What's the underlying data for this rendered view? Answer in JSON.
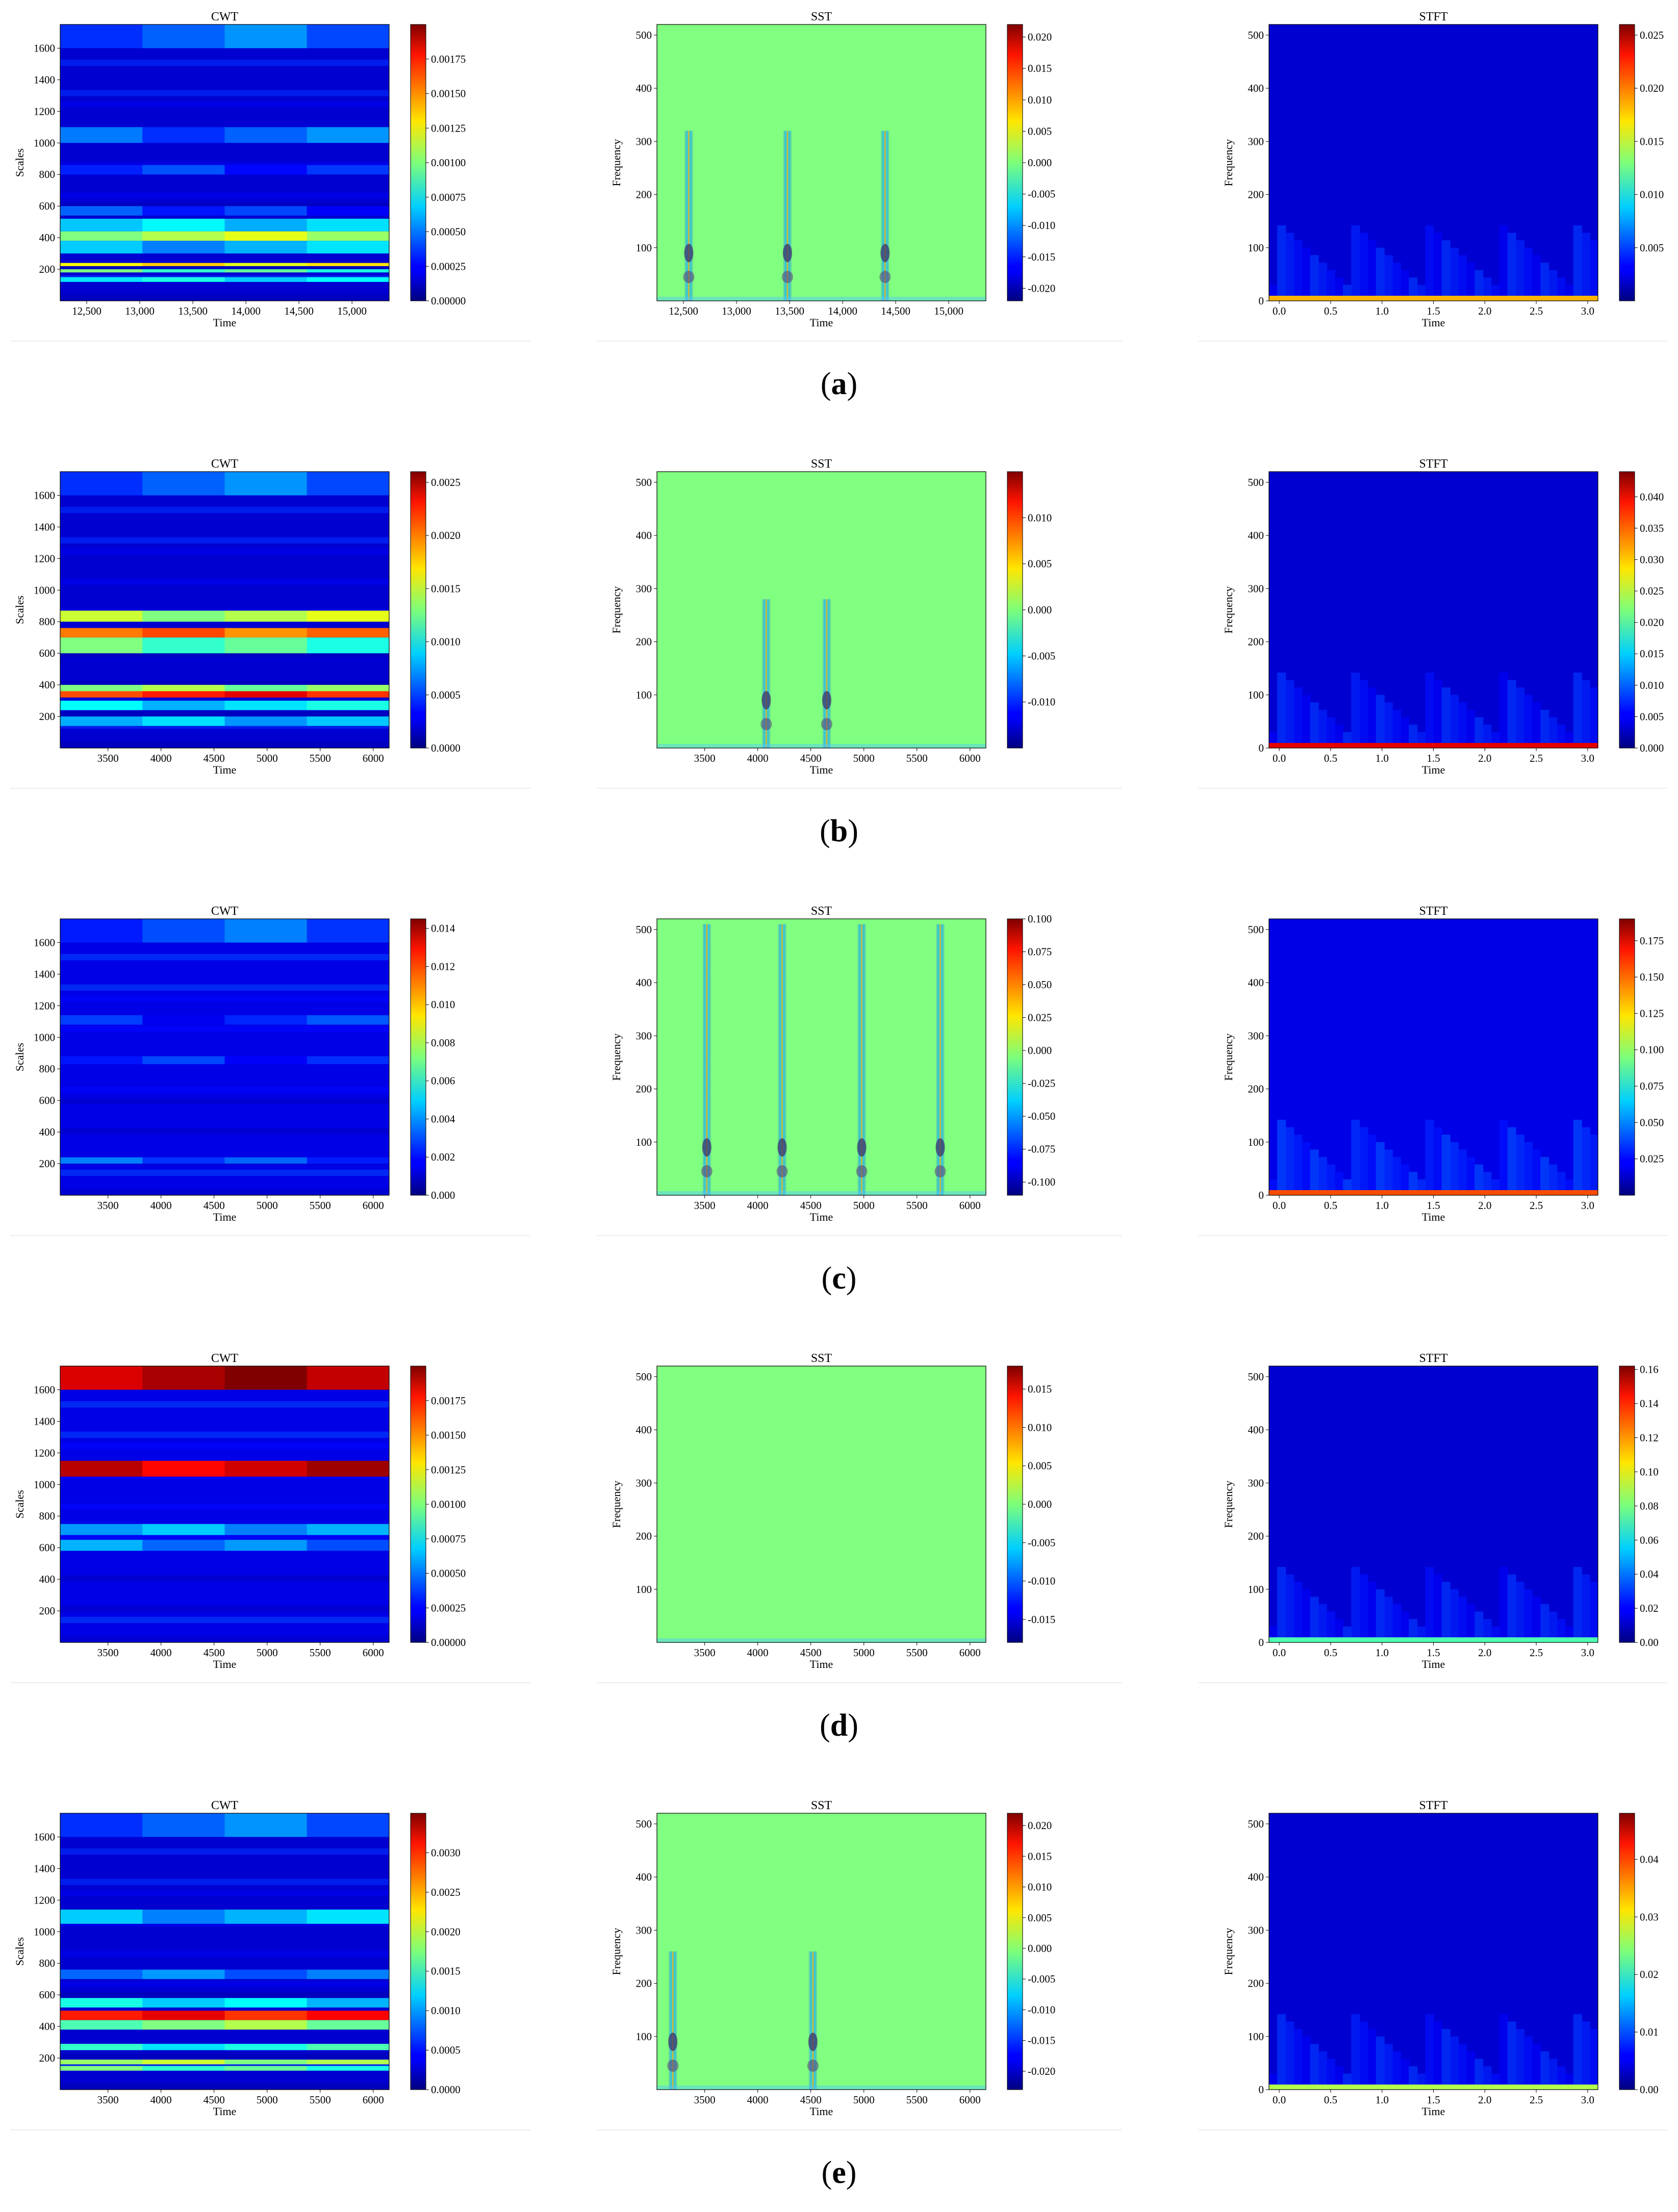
{
  "figure": {
    "panel_labels": [
      "a",
      "b",
      "c",
      "d",
      "e"
    ],
    "columns": [
      "CWT",
      "SST",
      "STFT"
    ]
  },
  "colors": {
    "colormap": "jet",
    "background": "#ffffff"
  },
  "chart_data": [
    {
      "row": "a",
      "type": "heatmap",
      "title": "CWT",
      "xlabel": "Time",
      "ylabel": "Scales",
      "xlim": [
        12250,
        15350
      ],
      "ylim": [
        0,
        1750
      ],
      "xticks": [
        {
          "v": 12500,
          "l": "12,500"
        },
        {
          "v": 13000,
          "l": "13,000"
        },
        {
          "v": 13500,
          "l": "13,500"
        },
        {
          "v": 14000,
          "l": "14,000"
        },
        {
          "v": 14500,
          "l": "14,500"
        },
        {
          "v": 15000,
          "l": "15,000"
        }
      ],
      "yticks": [
        200,
        400,
        600,
        800,
        1000,
        1200,
        1400,
        1600
      ],
      "colorbar": {
        "min": 0,
        "max": 0.002,
        "ticks": [
          "0.00000",
          "0.00025",
          "0.00050",
          "0.00075",
          "0.00100",
          "0.00125",
          "0.00150",
          "0.00175"
        ]
      },
      "bands": [
        {
          "y0": 1600,
          "y1": 1750,
          "v": 0.22
        },
        {
          "y0": 1000,
          "y1": 1100,
          "v": 0.22
        },
        {
          "y0": 800,
          "y1": 860,
          "v": 0.18
        },
        {
          "y0": 540,
          "y1": 600,
          "v": 0.17
        },
        {
          "y0": 440,
          "y1": 520,
          "v": 0.32
        },
        {
          "y0": 380,
          "y1": 440,
          "v": 0.55
        },
        {
          "y0": 300,
          "y1": 380,
          "v": 0.3
        },
        {
          "y0": 220,
          "y1": 240,
          "v": 0.65
        },
        {
          "y0": 180,
          "y1": 200,
          "v": 0.45
        },
        {
          "y0": 120,
          "y1": 150,
          "v": 0.35
        }
      ],
      "base": 0.08
    },
    {
      "row": "a",
      "type": "heatmap",
      "title": "SST",
      "xlabel": "Time",
      "ylabel": "Frequency",
      "xlim": [
        12250,
        15350
      ],
      "ylim": [
        0,
        520
      ],
      "xticks": [
        {
          "v": 12500,
          "l": "12,500"
        },
        {
          "v": 13000,
          "l": "13,000"
        },
        {
          "v": 13500,
          "l": "13,500"
        },
        {
          "v": 14000,
          "l": "14,000"
        },
        {
          "v": 14500,
          "l": "14,500"
        },
        {
          "v": 15000,
          "l": "15,000"
        }
      ],
      "yticks": [
        100,
        200,
        300,
        400,
        500
      ],
      "colorbar": {
        "min": -0.022,
        "max": 0.022,
        "ticks": [
          "-0.020",
          "-0.015",
          "-0.010",
          "-0.005",
          "0.000",
          "0.005",
          "0.010",
          "0.015",
          "0.020"
        ]
      },
      "streaks": [
        12550,
        13480,
        14400
      ],
      "streak_top": 320,
      "base": 0.5
    },
    {
      "row": "a",
      "type": "heatmap",
      "title": "STFT",
      "xlabel": "Time",
      "ylabel": "Frequency",
      "xlim": [
        -0.1,
        3.1
      ],
      "ylim": [
        0,
        520
      ],
      "xticks": [
        {
          "v": 0,
          "l": "0.0"
        },
        {
          "v": 0.5,
          "l": "0.5"
        },
        {
          "v": 1,
          "l": "1.0"
        },
        {
          "v": 1.5,
          "l": "1.5"
        },
        {
          "v": 2,
          "l": "2.0"
        },
        {
          "v": 2.5,
          "l": "2.5"
        },
        {
          "v": 3,
          "l": "3.0"
        }
      ],
      "yticks": [
        0,
        100,
        200,
        300,
        400,
        500
      ],
      "colorbar": {
        "min": 0,
        "max": 0.026,
        "ticks": [
          "0.005",
          "0.010",
          "0.015",
          "0.020",
          "0.025"
        ]
      },
      "bottom_strip": 0.7,
      "base": 0.08
    },
    {
      "row": "b",
      "type": "heatmap",
      "title": "CWT",
      "xlabel": "Time",
      "ylabel": "Scales",
      "xlim": [
        3050,
        6150
      ],
      "ylim": [
        0,
        1750
      ],
      "xticks": [
        {
          "v": 3500,
          "l": "3500"
        },
        {
          "v": 4000,
          "l": "4000"
        },
        {
          "v": 4500,
          "l": "4500"
        },
        {
          "v": 5000,
          "l": "5000"
        },
        {
          "v": 5500,
          "l": "5500"
        },
        {
          "v": 6000,
          "l": "6000"
        }
      ],
      "yticks": [
        200,
        400,
        600,
        800,
        1000,
        1200,
        1400,
        1600
      ],
      "colorbar": {
        "min": 0,
        "max": 0.0026,
        "ticks": [
          "0.0000",
          "0.0005",
          "0.0010",
          "0.0015",
          "0.0020",
          "0.0025"
        ]
      },
      "bands": [
        {
          "y0": 1600,
          "y1": 1750,
          "v": 0.22
        },
        {
          "y0": 800,
          "y1": 870,
          "v": 0.55
        },
        {
          "y0": 700,
          "y1": 760,
          "v": 0.78
        },
        {
          "y0": 600,
          "y1": 700,
          "v": 0.45
        },
        {
          "y0": 360,
          "y1": 400,
          "v": 0.5
        },
        {
          "y0": 320,
          "y1": 360,
          "v": 0.85
        },
        {
          "y0": 240,
          "y1": 300,
          "v": 0.35
        },
        {
          "y0": 140,
          "y1": 200,
          "v": 0.32
        }
      ],
      "base": 0.08
    },
    {
      "row": "b",
      "type": "heatmap",
      "title": "SST",
      "xlabel": "Time",
      "ylabel": "Frequency",
      "xlim": [
        3050,
        6150
      ],
      "ylim": [
        0,
        520
      ],
      "xticks": [
        {
          "v": 3500,
          "l": "3500"
        },
        {
          "v": 4000,
          "l": "4000"
        },
        {
          "v": 4500,
          "l": "4500"
        },
        {
          "v": 5000,
          "l": "5000"
        },
        {
          "v": 5500,
          "l": "5500"
        },
        {
          "v": 6000,
          "l": "6000"
        }
      ],
      "yticks": [
        100,
        200,
        300,
        400,
        500
      ],
      "colorbar": {
        "min": -0.015,
        "max": 0.015,
        "ticks": [
          "-0.010",
          "-0.005",
          "0.000",
          "0.005",
          "0.010"
        ]
      },
      "streaks": [
        4080,
        4650
      ],
      "streak_top": 280,
      "base": 0.5
    },
    {
      "row": "b",
      "type": "heatmap",
      "title": "STFT",
      "xlabel": "Time",
      "ylabel": "Frequency",
      "xlim": [
        -0.1,
        3.1
      ],
      "ylim": [
        0,
        520
      ],
      "xticks": [
        {
          "v": 0,
          "l": "0.0"
        },
        {
          "v": 0.5,
          "l": "0.5"
        },
        {
          "v": 1,
          "l": "1.0"
        },
        {
          "v": 1.5,
          "l": "1.5"
        },
        {
          "v": 2,
          "l": "2.0"
        },
        {
          "v": 2.5,
          "l": "2.5"
        },
        {
          "v": 3,
          "l": "3.0"
        }
      ],
      "yticks": [
        0,
        100,
        200,
        300,
        400,
        500
      ],
      "colorbar": {
        "min": 0,
        "max": 0.044,
        "ticks": [
          "0.000",
          "0.005",
          "0.010",
          "0.015",
          "0.020",
          "0.025",
          "0.030",
          "0.035",
          "0.040"
        ]
      },
      "bottom_strip": 0.9,
      "base": 0.08
    },
    {
      "row": "c",
      "type": "heatmap",
      "title": "CWT",
      "xlabel": "Time",
      "ylabel": "Scales",
      "xlim": [
        3050,
        6150
      ],
      "ylim": [
        0,
        1750
      ],
      "xticks": [
        {
          "v": 3500,
          "l": "3500"
        },
        {
          "v": 4000,
          "l": "4000"
        },
        {
          "v": 4500,
          "l": "4500"
        },
        {
          "v": 5000,
          "l": "5000"
        },
        {
          "v": 5500,
          "l": "5500"
        },
        {
          "v": 6000,
          "l": "6000"
        }
      ],
      "yticks": [
        200,
        400,
        600,
        800,
        1000,
        1200,
        1400,
        1600
      ],
      "colorbar": {
        "min": 0,
        "max": 0.0145,
        "ticks": [
          "0.000",
          "0.002",
          "0.004",
          "0.006",
          "0.008",
          "0.010",
          "0.012",
          "0.014"
        ]
      },
      "bands": [
        {
          "y0": 1600,
          "y1": 1750,
          "v": 0.2
        },
        {
          "y0": 1080,
          "y1": 1140,
          "v": 0.16
        },
        {
          "y0": 830,
          "y1": 880,
          "v": 0.17
        },
        {
          "y0": 200,
          "y1": 240,
          "v": 0.2
        }
      ],
      "base": 0.1
    },
    {
      "row": "c",
      "type": "heatmap",
      "title": "SST",
      "xlabel": "Time",
      "ylabel": "Frequency",
      "xlim": [
        3050,
        6150
      ],
      "ylim": [
        0,
        520
      ],
      "xticks": [
        {
          "v": 3500,
          "l": "3500"
        },
        {
          "v": 4000,
          "l": "4000"
        },
        {
          "v": 4500,
          "l": "4500"
        },
        {
          "v": 5000,
          "l": "5000"
        },
        {
          "v": 5500,
          "l": "5500"
        },
        {
          "v": 6000,
          "l": "6000"
        }
      ],
      "yticks": [
        100,
        200,
        300,
        400,
        500
      ],
      "colorbar": {
        "min": -0.11,
        "max": 0.1,
        "ticks": [
          "-0.100",
          "-0.075",
          "-0.050",
          "-0.025",
          "0.000",
          "0.025",
          "0.050",
          "0.075",
          "0.100"
        ]
      },
      "streaks": [
        3520,
        4230,
        4980,
        5720
      ],
      "streak_top": 510,
      "base": 0.5
    },
    {
      "row": "c",
      "type": "heatmap",
      "title": "STFT",
      "xlabel": "Time",
      "ylabel": "Frequency",
      "xlim": [
        -0.1,
        3.1
      ],
      "ylim": [
        0,
        520
      ],
      "xticks": [
        {
          "v": 0,
          "l": "0.0"
        },
        {
          "v": 0.5,
          "l": "0.5"
        },
        {
          "v": 1,
          "l": "1.0"
        },
        {
          "v": 1.5,
          "l": "1.5"
        },
        {
          "v": 2,
          "l": "2.0"
        },
        {
          "v": 2.5,
          "l": "2.5"
        },
        {
          "v": 3,
          "l": "3.0"
        }
      ],
      "yticks": [
        0,
        100,
        200,
        300,
        400,
        500
      ],
      "colorbar": {
        "min": 0,
        "max": 0.19,
        "ticks": [
          "0.025",
          "0.050",
          "0.075",
          "0.100",
          "0.125",
          "0.150",
          "0.175"
        ]
      },
      "bottom_strip": 0.8,
      "base": 0.1
    },
    {
      "row": "d",
      "type": "heatmap",
      "title": "CWT",
      "xlabel": "Time",
      "ylabel": "Scales",
      "xlim": [
        3050,
        6150
      ],
      "ylim": [
        0,
        1750
      ],
      "xticks": [
        {
          "v": 3500,
          "l": "3500"
        },
        {
          "v": 4000,
          "l": "4000"
        },
        {
          "v": 4500,
          "l": "4500"
        },
        {
          "v": 5000,
          "l": "5000"
        },
        {
          "v": 5500,
          "l": "5500"
        },
        {
          "v": 6000,
          "l": "6000"
        }
      ],
      "yticks": [
        200,
        400,
        600,
        800,
        1000,
        1200,
        1400,
        1600
      ],
      "colorbar": {
        "min": 0,
        "max": 0.002,
        "ticks": [
          "0.00000",
          "0.00025",
          "0.00050",
          "0.00075",
          "0.00100",
          "0.00125",
          "0.00150",
          "0.00175"
        ]
      },
      "bands": [
        {
          "y0": 1600,
          "y1": 1750,
          "v": 0.96
        },
        {
          "y0": 1050,
          "y1": 1150,
          "v": 0.92
        },
        {
          "y0": 680,
          "y1": 750,
          "v": 0.3
        },
        {
          "y0": 580,
          "y1": 650,
          "v": 0.25
        }
      ],
      "base": 0.1
    },
    {
      "row": "d",
      "type": "heatmap",
      "title": "SST",
      "xlabel": "Time",
      "ylabel": "Frequency",
      "xlim": [
        3050,
        6150
      ],
      "ylim": [
        0,
        520
      ],
      "xticks": [
        {
          "v": 3500,
          "l": "3500"
        },
        {
          "v": 4000,
          "l": "4000"
        },
        {
          "v": 4500,
          "l": "4500"
        },
        {
          "v": 5000,
          "l": "5000"
        },
        {
          "v": 5500,
          "l": "5500"
        },
        {
          "v": 6000,
          "l": "6000"
        }
      ],
      "yticks": [
        100,
        200,
        300,
        400,
        500
      ],
      "colorbar": {
        "min": -0.018,
        "max": 0.018,
        "ticks": [
          "-0.015",
          "-0.010",
          "-0.005",
          "0.000",
          "0.005",
          "0.010",
          "0.015"
        ]
      },
      "streaks": [],
      "streak_top": 0,
      "base": 0.5
    },
    {
      "row": "d",
      "type": "heatmap",
      "title": "STFT",
      "xlabel": "Time",
      "ylabel": "Frequency",
      "xlim": [
        -0.1,
        3.1
      ],
      "ylim": [
        0,
        520
      ],
      "xticks": [
        {
          "v": 0,
          "l": "0.0"
        },
        {
          "v": 0.5,
          "l": "0.5"
        },
        {
          "v": 1,
          "l": "1.0"
        },
        {
          "v": 1.5,
          "l": "1.5"
        },
        {
          "v": 2,
          "l": "2.0"
        },
        {
          "v": 2.5,
          "l": "2.5"
        },
        {
          "v": 3,
          "l": "3.0"
        }
      ],
      "yticks": [
        0,
        100,
        200,
        300,
        400,
        500
      ],
      "colorbar": {
        "min": 0,
        "max": 0.162,
        "ticks": [
          "0.00",
          "0.02",
          "0.04",
          "0.06",
          "0.08",
          "0.10",
          "0.12",
          "0.14",
          "0.16"
        ]
      },
      "bottom_strip": 0.45,
      "base": 0.08
    },
    {
      "row": "e",
      "type": "heatmap",
      "title": "CWT",
      "xlabel": "Time",
      "ylabel": "Scales",
      "xlim": [
        3050,
        6150
      ],
      "ylim": [
        0,
        1750
      ],
      "xticks": [
        {
          "v": 3500,
          "l": "3500"
        },
        {
          "v": 4000,
          "l": "4000"
        },
        {
          "v": 4500,
          "l": "4500"
        },
        {
          "v": 5000,
          "l": "5000"
        },
        {
          "v": 5500,
          "l": "5500"
        },
        {
          "v": 6000,
          "l": "6000"
        }
      ],
      "yticks": [
        200,
        400,
        600,
        800,
        1000,
        1200,
        1400,
        1600
      ],
      "colorbar": {
        "min": 0,
        "max": 0.0035,
        "ticks": [
          "0.0000",
          "0.0005",
          "0.0010",
          "0.0015",
          "0.0020",
          "0.0025",
          "0.0030"
        ]
      },
      "bands": [
        {
          "y0": 1600,
          "y1": 1750,
          "v": 0.22
        },
        {
          "y0": 1050,
          "y1": 1140,
          "v": 0.3
        },
        {
          "y0": 700,
          "y1": 760,
          "v": 0.25
        },
        {
          "y0": 520,
          "y1": 580,
          "v": 0.35
        },
        {
          "y0": 440,
          "y1": 500,
          "v": 0.85
        },
        {
          "y0": 380,
          "y1": 440,
          "v": 0.5
        },
        {
          "y0": 250,
          "y1": 290,
          "v": 0.4
        },
        {
          "y0": 160,
          "y1": 190,
          "v": 0.55
        },
        {
          "y0": 120,
          "y1": 150,
          "v": 0.45
        }
      ],
      "base": 0.08
    },
    {
      "row": "e",
      "type": "heatmap",
      "title": "SST",
      "xlabel": "Time",
      "ylabel": "Frequency",
      "xlim": [
        3050,
        6150
      ],
      "ylim": [
        0,
        520
      ],
      "xticks": [
        {
          "v": 3500,
          "l": "3500"
        },
        {
          "v": 4000,
          "l": "4000"
        },
        {
          "v": 4500,
          "l": "4500"
        },
        {
          "v": 5000,
          "l": "5000"
        },
        {
          "v": 5500,
          "l": "5500"
        },
        {
          "v": 6000,
          "l": "6000"
        }
      ],
      "yticks": [
        100,
        200,
        300,
        400,
        500
      ],
      "colorbar": {
        "min": -0.023,
        "max": 0.022,
        "ticks": [
          "-0.020",
          "-0.015",
          "-0.010",
          "-0.005",
          "0.000",
          "0.005",
          "0.010",
          "0.015",
          "0.020"
        ]
      },
      "streaks": [
        3200,
        4520
      ],
      "streak_top": 260,
      "base": 0.5
    },
    {
      "row": "e",
      "type": "heatmap",
      "title": "STFT",
      "xlabel": "Time",
      "ylabel": "Frequency",
      "xlim": [
        -0.1,
        3.1
      ],
      "ylim": [
        0,
        520
      ],
      "xticks": [
        {
          "v": 0,
          "l": "0.0"
        },
        {
          "v": 0.5,
          "l": "0.5"
        },
        {
          "v": 1,
          "l": "1.0"
        },
        {
          "v": 1.5,
          "l": "1.5"
        },
        {
          "v": 2,
          "l": "2.0"
        },
        {
          "v": 2.5,
          "l": "2.5"
        },
        {
          "v": 3,
          "l": "3.0"
        }
      ],
      "yticks": [
        0,
        100,
        200,
        300,
        400,
        500
      ],
      "colorbar": {
        "min": 0,
        "max": 0.048,
        "ticks": [
          "0.00",
          "0.01",
          "0.02",
          "0.03",
          "0.04"
        ]
      },
      "bottom_strip": 0.55,
      "base": 0.08
    }
  ]
}
